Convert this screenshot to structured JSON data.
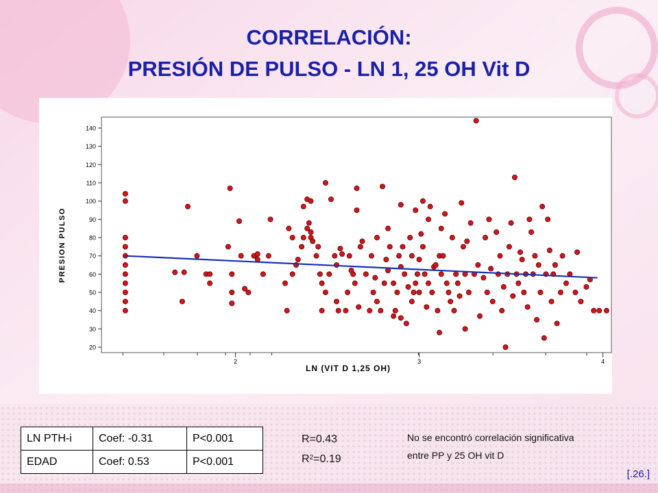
{
  "slide": {
    "title_line1": "CORRELACIÓN:",
    "title_line2": "PRESIÓN DE PULSO - LN 1, 25 OH Vit D",
    "reference": "[.26.]",
    "title_color": "#1a20a8"
  },
  "table": {
    "rows": [
      [
        "LN PTH-i",
        "Coef: -0.31",
        "P<0.001"
      ],
      [
        "EDAD",
        "Coef: 0.53",
        "P<0.001"
      ]
    ]
  },
  "stats": {
    "r": "R=0.43",
    "r2_prefix": "R",
    "r2_sup": "2",
    "r2_suffix": "=0.19"
  },
  "note": {
    "line1": "No se encontró correlación significativa",
    "line2": "entre PP y 25 OH vit D"
  },
  "chart_data": {
    "type": "scatter",
    "xlabel": "LN (VIT D 1,25 OH)",
    "ylabel": "PRESION PULSO",
    "xlim": [
      1.27,
      4.05
    ],
    "ylim": [
      17,
      146
    ],
    "xticks": [
      2,
      3,
      4
    ],
    "yticks": [
      20,
      30,
      40,
      50,
      60,
      70,
      80,
      90,
      100,
      110,
      120,
      130,
      140
    ],
    "point_color": "#d0161a",
    "line_color": "#1430b8",
    "regression_line": {
      "x": [
        1.4,
        3.97
      ],
      "y": [
        70,
        58
      ]
    },
    "points": [
      [
        1.4,
        104
      ],
      [
        1.4,
        100
      ],
      [
        1.4,
        80
      ],
      [
        1.4,
        75
      ],
      [
        1.4,
        70
      ],
      [
        1.4,
        65
      ],
      [
        1.4,
        60
      ],
      [
        1.4,
        55
      ],
      [
        1.4,
        50
      ],
      [
        1.4,
        45
      ],
      [
        1.4,
        40
      ],
      [
        1.67,
        61
      ],
      [
        1.71,
        45
      ],
      [
        1.72,
        61
      ],
      [
        1.74,
        97
      ],
      [
        1.79,
        70
      ],
      [
        1.84,
        60
      ],
      [
        1.86,
        55
      ],
      [
        1.86,
        60
      ],
      [
        1.96,
        75
      ],
      [
        1.97,
        107
      ],
      [
        1.98,
        60
      ],
      [
        1.98,
        50
      ],
      [
        1.98,
        44
      ],
      [
        2.02,
        89
      ],
      [
        2.03,
        70
      ],
      [
        2.05,
        52
      ],
      [
        2.07,
        50
      ],
      [
        2.1,
        70
      ],
      [
        2.12,
        71
      ],
      [
        2.12,
        68
      ],
      [
        2.15,
        60
      ],
      [
        2.18,
        70
      ],
      [
        2.19,
        90
      ],
      [
        2.27,
        55
      ],
      [
        2.28,
        40
      ],
      [
        2.29,
        85
      ],
      [
        2.31,
        80
      ],
      [
        2.31,
        60
      ],
      [
        2.33,
        65
      ],
      [
        2.34,
        68
      ],
      [
        2.36,
        75
      ],
      [
        2.37,
        97
      ],
      [
        2.37,
        80
      ],
      [
        2.39,
        101
      ],
      [
        2.39,
        85
      ],
      [
        2.4,
        88
      ],
      [
        2.41,
        83
      ],
      [
        2.41,
        80
      ],
      [
        2.41,
        100
      ],
      [
        2.42,
        78
      ],
      [
        2.44,
        70
      ],
      [
        2.45,
        75
      ],
      [
        2.46,
        60
      ],
      [
        2.47,
        55
      ],
      [
        2.47,
        40
      ],
      [
        2.49,
        110
      ],
      [
        2.49,
        50
      ],
      [
        2.51,
        60
      ],
      [
        2.52,
        101
      ],
      [
        2.54,
        70
      ],
      [
        2.55,
        65
      ],
      [
        2.55,
        45
      ],
      [
        2.56,
        40
      ],
      [
        2.57,
        74
      ],
      [
        2.58,
        71
      ],
      [
        2.6,
        40
      ],
      [
        2.61,
        50
      ],
      [
        2.62,
        70
      ],
      [
        2.63,
        62
      ],
      [
        2.64,
        60
      ],
      [
        2.65,
        55
      ],
      [
        2.66,
        107
      ],
      [
        2.66,
        95
      ],
      [
        2.67,
        42
      ],
      [
        2.68,
        75
      ],
      [
        2.69,
        78
      ],
      [
        2.71,
        60
      ],
      [
        2.73,
        40
      ],
      [
        2.74,
        70
      ],
      [
        2.75,
        50
      ],
      [
        2.76,
        58
      ],
      [
        2.77,
        80
      ],
      [
        2.77,
        45
      ],
      [
        2.79,
        40
      ],
      [
        2.8,
        108
      ],
      [
        2.81,
        55
      ],
      [
        2.82,
        68
      ],
      [
        2.83,
        85
      ],
      [
        2.83,
        62
      ],
      [
        2.84,
        75
      ],
      [
        2.86,
        37
      ],
      [
        2.86,
        55
      ],
      [
        2.87,
        40
      ],
      [
        2.88,
        50
      ],
      [
        2.89,
        70
      ],
      [
        2.9,
        64
      ],
      [
        2.9,
        98
      ],
      [
        2.9,
        36
      ],
      [
        2.91,
        75
      ],
      [
        2.92,
        60
      ],
      [
        2.93,
        33
      ],
      [
        2.94,
        53
      ],
      [
        2.95,
        80
      ],
      [
        2.96,
        70
      ],
      [
        2.96,
        45
      ],
      [
        2.97,
        50
      ],
      [
        2.98,
        55
      ],
      [
        2.98,
        95
      ],
      [
        2.99,
        60
      ],
      [
        3.0,
        68
      ],
      [
        3.0,
        50
      ],
      [
        3.01,
        82
      ],
      [
        3.02,
        75
      ],
      [
        3.02,
        100
      ],
      [
        3.03,
        60
      ],
      [
        3.04,
        42
      ],
      [
        3.05,
        55
      ],
      [
        3.05,
        90
      ],
      [
        3.06,
        97
      ],
      [
        3.07,
        50
      ],
      [
        3.08,
        64
      ],
      [
        3.09,
        65
      ],
      [
        3.1,
        40
      ],
      [
        3.11,
        28
      ],
      [
        3.11,
        70
      ],
      [
        3.12,
        85
      ],
      [
        3.12,
        60
      ],
      [
        3.13,
        70
      ],
      [
        3.14,
        93
      ],
      [
        3.15,
        55
      ],
      [
        3.16,
        50
      ],
      [
        3.17,
        45
      ],
      [
        3.18,
        80
      ],
      [
        3.19,
        40
      ],
      [
        3.2,
        60
      ],
      [
        3.21,
        55
      ],
      [
        3.22,
        48
      ],
      [
        3.23,
        99
      ],
      [
        3.24,
        75
      ],
      [
        3.25,
        60
      ],
      [
        3.25,
        30
      ],
      [
        3.26,
        78
      ],
      [
        3.27,
        50
      ],
      [
        3.28,
        88
      ],
      [
        3.3,
        60
      ],
      [
        3.31,
        144
      ],
      [
        3.32,
        65
      ],
      [
        3.33,
        37
      ],
      [
        3.35,
        58
      ],
      [
        3.36,
        80
      ],
      [
        3.37,
        50
      ],
      [
        3.38,
        90
      ],
      [
        3.39,
        63
      ],
      [
        3.4,
        45
      ],
      [
        3.42,
        83
      ],
      [
        3.43,
        60
      ],
      [
        3.44,
        70
      ],
      [
        3.45,
        40
      ],
      [
        3.46,
        53
      ],
      [
        3.47,
        20
      ],
      [
        3.48,
        60
      ],
      [
        3.49,
        75
      ],
      [
        3.5,
        88
      ],
      [
        3.51,
        48
      ],
      [
        3.52,
        113
      ],
      [
        3.53,
        60
      ],
      [
        3.54,
        55
      ],
      [
        3.55,
        72
      ],
      [
        3.56,
        68
      ],
      [
        3.57,
        50
      ],
      [
        3.58,
        60
      ],
      [
        3.59,
        42
      ],
      [
        3.6,
        90
      ],
      [
        3.61,
        83
      ],
      [
        3.62,
        60
      ],
      [
        3.63,
        70
      ],
      [
        3.64,
        35
      ],
      [
        3.65,
        65
      ],
      [
        3.66,
        50
      ],
      [
        3.67,
        97
      ],
      [
        3.68,
        25
      ],
      [
        3.69,
        60
      ],
      [
        3.7,
        90
      ],
      [
        3.71,
        73
      ],
      [
        3.72,
        45
      ],
      [
        3.73,
        60
      ],
      [
        3.74,
        65
      ],
      [
        3.75,
        33
      ],
      [
        3.77,
        50
      ],
      [
        3.78,
        70
      ],
      [
        3.8,
        55
      ],
      [
        3.82,
        60
      ],
      [
        3.85,
        50
      ],
      [
        3.86,
        72
      ],
      [
        3.88,
        45
      ],
      [
        3.91,
        53
      ],
      [
        3.93,
        57
      ],
      [
        3.95,
        40
      ],
      [
        3.98,
        40
      ],
      [
        4.02,
        40
      ]
    ]
  }
}
